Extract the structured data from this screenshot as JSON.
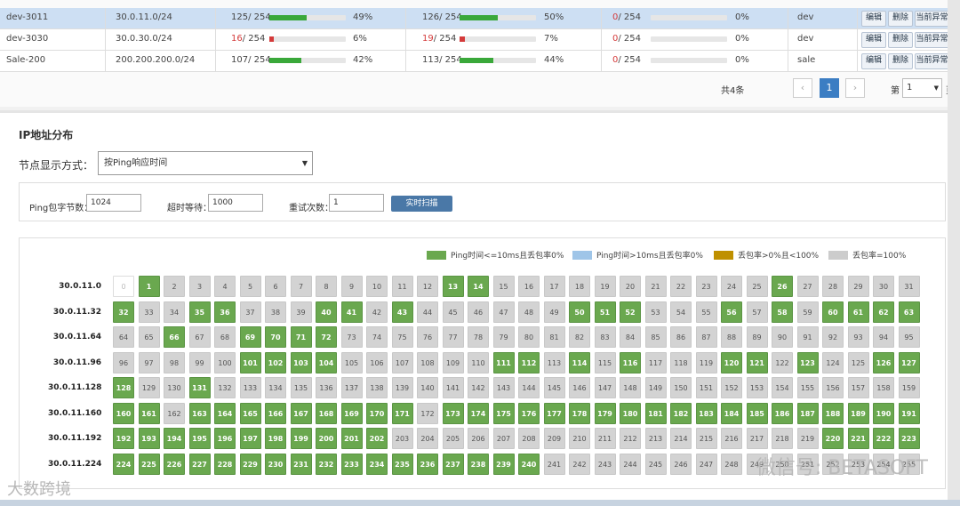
{
  "rows": [
    {
      "name": "dev-3011",
      "cidr": "30.0.11.0/24",
      "a_used": "125",
      "a_total": "/ 254",
      "a_pct": "49%",
      "a_frac": 0.49,
      "a_red": false,
      "b_used": "126",
      "b_total": "/ 254",
      "b_pct": "50%",
      "b_frac": 0.5,
      "b_red": false,
      "c_used": "0",
      "c_total": "/ 254",
      "c_pct": "0%",
      "c_frac": 0,
      "env": "dev",
      "selected": true
    },
    {
      "name": "dev-3030",
      "cidr": "30.0.30.0/24",
      "a_used": "16",
      "a_total": "/ 254",
      "a_pct": "6%",
      "a_frac": 0.06,
      "a_red": true,
      "b_used": "19",
      "b_total": "/ 254",
      "b_pct": "7%",
      "b_frac": 0.07,
      "b_red": true,
      "c_used": "0",
      "c_total": "/ 254",
      "c_pct": "0%",
      "c_frac": 0,
      "env": "dev",
      "selected": false
    },
    {
      "name": "Sale-200",
      "cidr": "200.200.200.0/24",
      "a_used": "107",
      "a_total": "/ 254",
      "a_pct": "42%",
      "a_frac": 0.42,
      "a_red": false,
      "b_used": "113",
      "b_total": "/ 254",
      "b_pct": "44%",
      "b_frac": 0.44,
      "b_red": false,
      "c_used": "0",
      "c_total": "/ 254",
      "c_pct": "0%",
      "c_frac": 0,
      "env": "sale",
      "selected": false
    }
  ],
  "row_buttons": {
    "edit": "编辑",
    "delete": "删除",
    "anomaly": "当前异常"
  },
  "pager": {
    "total": "共4条",
    "prev": "‹",
    "page": "1",
    "next": "›",
    "goto_prefix": "第",
    "goto_value": "1",
    "goto_suffix": "页"
  },
  "section_title": "IP地址分布",
  "display_mode_label": "节点显示方式：",
  "display_mode_value": "按Ping响应时间",
  "params": {
    "size_label": "Ping包字节数：",
    "size_value": "1024",
    "timeout_label": "超时等待：",
    "timeout_value": "1000",
    "retry_label": "重试次数：",
    "retry_value": "1",
    "scan_button": "实时扫描"
  },
  "legend": [
    {
      "label": "Ping时间<=10ms且丢包率0%",
      "color": "#6aa84f"
    },
    {
      "label": "Ping时间>10ms且丢包率0%",
      "color": "#9fc5e8"
    },
    {
      "label": "丢包率>0%且<100%",
      "color": "#bf9000"
    },
    {
      "label": "丢包率=100%",
      "color": "#cccccc"
    }
  ],
  "subnets": [
    "30.0.11.0",
    "30.0.11.32",
    "30.0.11.64",
    "30.0.11.96",
    "30.0.11.128",
    "30.0.11.160",
    "30.0.11.192",
    "30.0.11.224"
  ],
  "green_ips": [
    1,
    13,
    14,
    26,
    32,
    35,
    36,
    40,
    41,
    43,
    50,
    51,
    52,
    56,
    58,
    60,
    61,
    62,
    63,
    66,
    69,
    70,
    71,
    72,
    101,
    102,
    103,
    104,
    111,
    112,
    114,
    116,
    120,
    121,
    123,
    126,
    127,
    128,
    131,
    160,
    161,
    163,
    164,
    165,
    166,
    167,
    168,
    169,
    170,
    171,
    173,
    174,
    175,
    176,
    177,
    178,
    179,
    180,
    181,
    182,
    183,
    184,
    185,
    186,
    187,
    188,
    189,
    190,
    191,
    192,
    193,
    194,
    195,
    196,
    197,
    198,
    199,
    200,
    201,
    202,
    220,
    221,
    222,
    223,
    224,
    225,
    226,
    227,
    228,
    229,
    230,
    231,
    232,
    233,
    234,
    235,
    236,
    237,
    238,
    239,
    240
  ],
  "network_ip": 0,
  "watermark": "微信号: BETASOFT",
  "watermark2": "大数跨境"
}
